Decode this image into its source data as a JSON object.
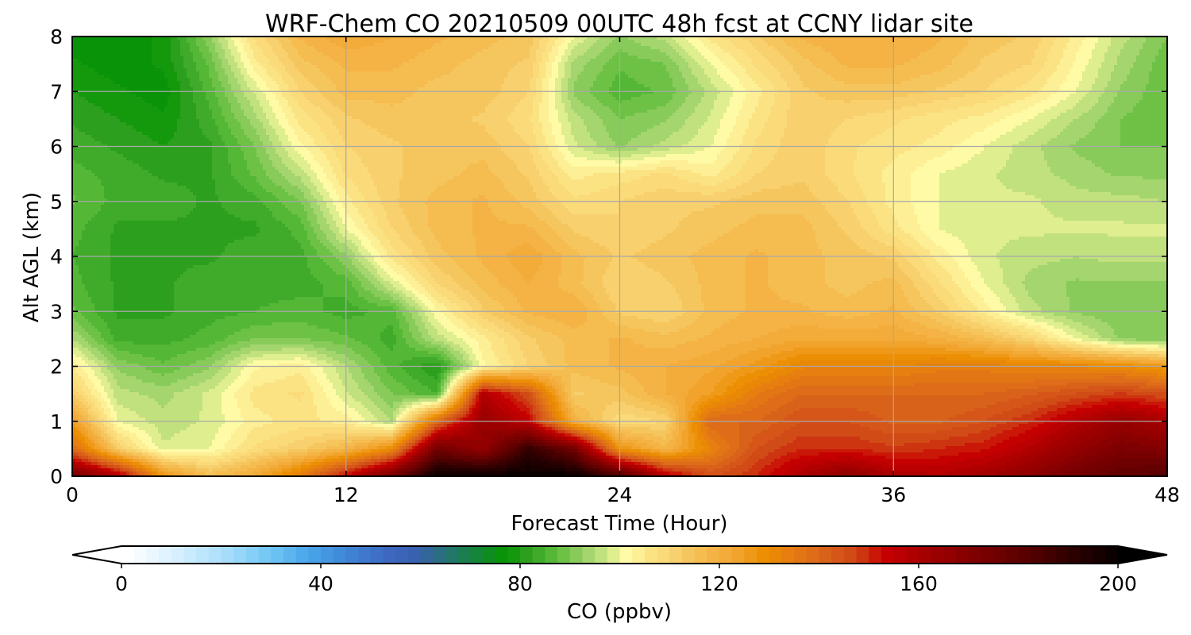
{
  "chart_data": {
    "type": "heatmap",
    "title": "WRF-Chem CO  20210509 00UTC 48h fcst at CCNY lidar site",
    "xlabel": "Forecast Time (Hour)",
    "ylabel": "Alt AGL (km)",
    "xlim": [
      0,
      48
    ],
    "ylim": [
      0,
      8
    ],
    "x_ticks": [
      "0",
      "12",
      "24",
      "36",
      "48"
    ],
    "y_ticks": [
      "0",
      "1",
      "2",
      "3",
      "4",
      "5",
      "6",
      "7",
      "8"
    ],
    "grid": true,
    "x_hours": [
      0,
      2,
      4,
      6,
      8,
      10,
      12,
      14,
      16,
      18,
      20,
      22,
      24,
      26,
      28,
      30,
      32,
      34,
      36,
      38,
      40,
      42,
      44,
      46,
      48
    ],
    "z_km": [
      0,
      0.5,
      1,
      1.5,
      2,
      2.5,
      3,
      3.5,
      4,
      4.5,
      5,
      5.5,
      6,
      6.5,
      7,
      7.5,
      8
    ],
    "values_ppbv": [
      [
        175,
        160,
        128,
        116,
        122,
        135,
        155,
        175,
        200,
        200,
        200,
        200,
        185,
        158,
        145,
        150,
        160,
        168,
        160,
        158,
        162,
        168,
        175,
        180,
        182
      ],
      [
        140,
        112,
        98,
        100,
        108,
        112,
        118,
        130,
        175,
        165,
        190,
        175,
        128,
        118,
        132,
        145,
        150,
        150,
        148,
        150,
        152,
        158,
        166,
        172,
        170
      ],
      [
        125,
        100,
        96,
        98,
        104,
        106,
        104,
        95,
        140,
        165,
        155,
        120,
        108,
        110,
        140,
        140,
        145,
        145,
        142,
        142,
        145,
        150,
        158,
        165,
        160
      ],
      [
        112,
        96,
        94,
        98,
        106,
        108,
        98,
        90,
        85,
        158,
        145,
        112,
        114,
        120,
        125,
        135,
        140,
        140,
        140,
        140,
        140,
        142,
        145,
        148,
        145
      ],
      [
        105,
        92,
        88,
        92,
        102,
        104,
        95,
        86,
        80,
        102,
        110,
        116,
        118,
        120,
        122,
        126,
        132,
        132,
        132,
        134,
        134,
        132,
        132,
        130,
        126
      ],
      [
        95,
        84,
        84,
        86,
        90,
        90,
        88,
        84,
        96,
        104,
        112,
        116,
        118,
        116,
        118,
        120,
        122,
        122,
        122,
        120,
        116,
        110,
        100,
        92,
        90
      ],
      [
        88,
        82,
        82,
        84,
        85,
        86,
        84,
        86,
        102,
        112,
        118,
        120,
        112,
        110,
        116,
        118,
        118,
        116,
        118,
        112,
        104,
        96,
        92,
        90,
        90
      ],
      [
        86,
        82,
        82,
        84,
        84,
        84,
        86,
        98,
        110,
        116,
        120,
        116,
        110,
        112,
        116,
        118,
        116,
        114,
        116,
        108,
        100,
        94,
        92,
        92,
        92
      ],
      [
        85,
        82,
        82,
        82,
        84,
        84,
        92,
        106,
        114,
        118,
        122,
        116,
        112,
        114,
        116,
        118,
        116,
        114,
        112,
        104,
        98,
        96,
        95,
        96,
        96
      ],
      [
        86,
        82,
        82,
        82,
        82,
        86,
        100,
        110,
        116,
        118,
        118,
        112,
        110,
        112,
        114,
        116,
        116,
        112,
        106,
        100,
        98,
        98,
        98,
        98,
        98
      ],
      [
        88,
        84,
        84,
        82,
        84,
        90,
        104,
        112,
        116,
        118,
        114,
        108,
        110,
        112,
        112,
        114,
        114,
        110,
        104,
        100,
        98,
        98,
        96,
        96,
        95
      ],
      [
        86,
        84,
        82,
        82,
        88,
        96,
        108,
        112,
        114,
        116,
        112,
        104,
        106,
        108,
        104,
        110,
        112,
        108,
        104,
        100,
        98,
        96,
        94,
        92,
        92
      ],
      [
        84,
        82,
        80,
        82,
        90,
        102,
        110,
        112,
        114,
        114,
        110,
        98,
        92,
        96,
        100,
        108,
        112,
        108,
        106,
        104,
        100,
        96,
        92,
        90,
        90
      ],
      [
        82,
        80,
        78,
        84,
        94,
        106,
        112,
        114,
        114,
        112,
        108,
        96,
        90,
        92,
        98,
        106,
        112,
        110,
        108,
        106,
        104,
        100,
        95,
        90,
        88
      ],
      [
        80,
        78,
        76,
        86,
        98,
        110,
        116,
        116,
        114,
        114,
        110,
        92,
        86,
        88,
        96,
        104,
        112,
        114,
        114,
        112,
        110,
        106,
        100,
        92,
        88
      ],
      [
        78,
        76,
        78,
        88,
        104,
        114,
        118,
        118,
        116,
        114,
        112,
        94,
        88,
        90,
        100,
        108,
        114,
        118,
        118,
        116,
        112,
        110,
        102,
        94,
        88
      ],
      [
        76,
        76,
        78,
        92,
        108,
        118,
        122,
        120,
        118,
        116,
        114,
        100,
        92,
        96,
        106,
        112,
        118,
        120,
        120,
        118,
        114,
        112,
        104,
        96,
        90
      ]
    ]
  },
  "colorbar": {
    "label": "CO  (ppbv)",
    "min": 0,
    "max": 200,
    "step": 2.5,
    "ticks": [
      "0",
      "40",
      "80",
      "120",
      "160",
      "200"
    ],
    "extend": "both",
    "stops": [
      [
        0,
        "#ffffff"
      ],
      [
        10,
        "#d6efff"
      ],
      [
        20,
        "#a6dcfa"
      ],
      [
        28,
        "#73c8f5"
      ],
      [
        36,
        "#4aa6ea"
      ],
      [
        44,
        "#3f86d5"
      ],
      [
        52,
        "#3e68c2"
      ],
      [
        58,
        "#3a5fae"
      ],
      [
        66,
        "#1f7a60"
      ],
      [
        72,
        "#0f8a25"
      ],
      [
        76,
        "#079600"
      ],
      [
        80,
        "#2c9f1f"
      ],
      [
        86,
        "#5cbc3a"
      ],
      [
        92,
        "#9ed36b"
      ],
      [
        97,
        "#d9eb8a"
      ],
      [
        100,
        "#fffaa5"
      ],
      [
        105,
        "#fbe384"
      ],
      [
        110,
        "#f8d06d"
      ],
      [
        116,
        "#f4b84a"
      ],
      [
        122,
        "#f2a530"
      ],
      [
        128,
        "#ec8d00"
      ],
      [
        134,
        "#e47a14"
      ],
      [
        140,
        "#d9621a"
      ],
      [
        146,
        "#cf4616"
      ],
      [
        152,
        "#c70000"
      ],
      [
        160,
        "#a40000"
      ],
      [
        170,
        "#7f0000"
      ],
      [
        180,
        "#5a0000"
      ],
      [
        190,
        "#2b0000"
      ],
      [
        200,
        "#000000"
      ]
    ]
  }
}
